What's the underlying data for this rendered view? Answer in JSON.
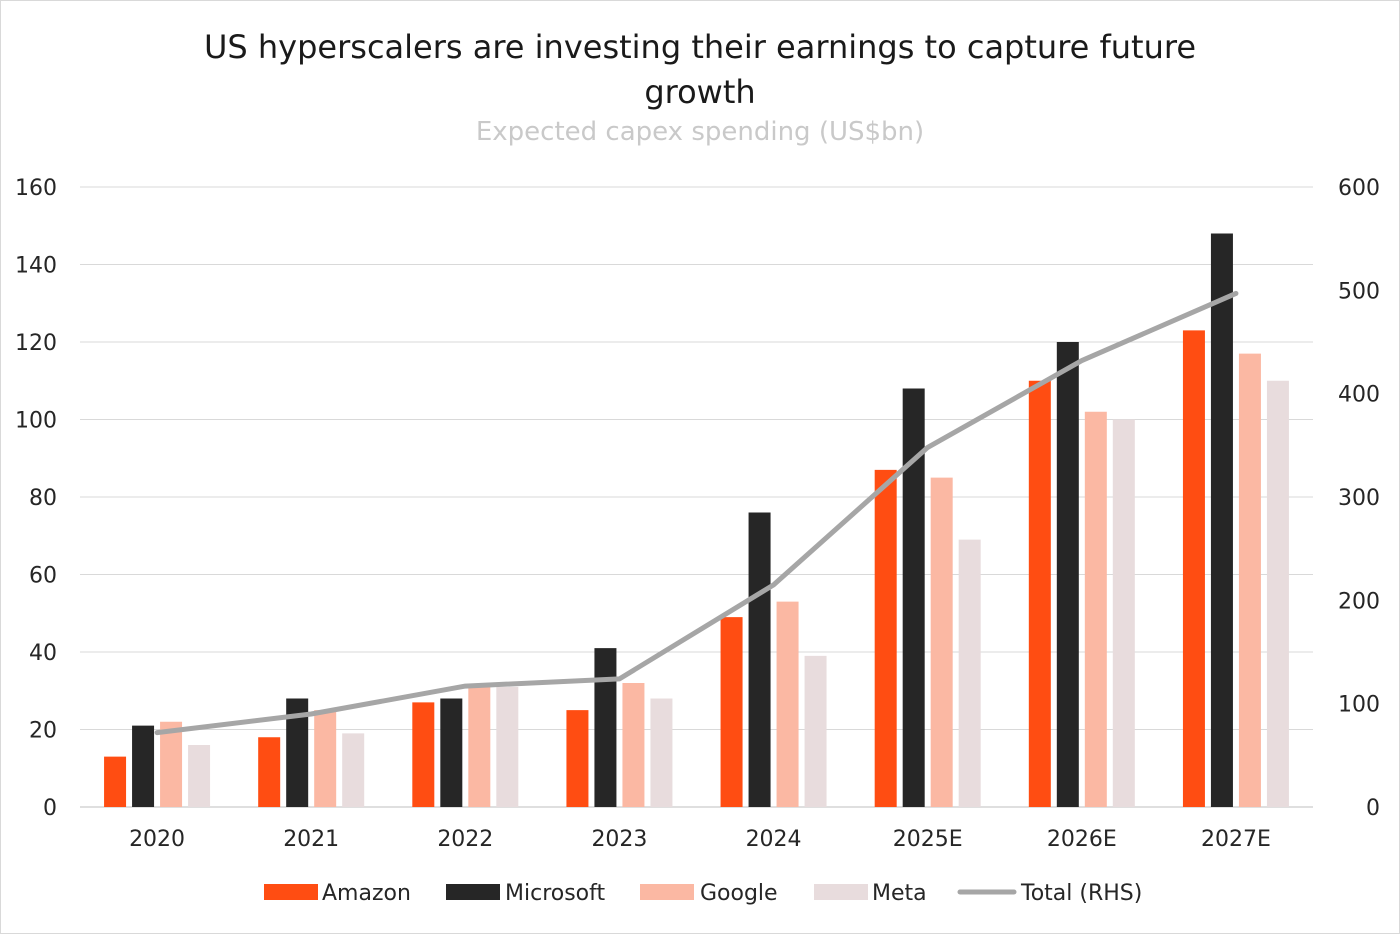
{
  "chart_data": {
    "type": "bar",
    "title": "US hyperscalers are investing their earnings to capture future growth",
    "title_lines": [
      "US hyperscalers are investing their earnings to capture future",
      "growth"
    ],
    "subtitle": "Expected capex spending (US$bn)",
    "categories": [
      "2020",
      "2021",
      "2022",
      "2023",
      "2024",
      "2025E",
      "2026E",
      "2027E"
    ],
    "series": [
      {
        "name": "Amazon",
        "type": "bar",
        "axis": "left",
        "color": "#ff4d12",
        "values": [
          13,
          18,
          27,
          25,
          49,
          87,
          110,
          123
        ]
      },
      {
        "name": "Microsoft",
        "type": "bar",
        "axis": "left",
        "color": "#262626",
        "values": [
          21,
          28,
          28,
          41,
          76,
          108,
          120,
          148
        ]
      },
      {
        "name": "Google",
        "type": "bar",
        "axis": "left",
        "color": "#fbb8a3",
        "values": [
          22,
          25,
          31,
          32,
          53,
          85,
          102,
          117
        ]
      },
      {
        "name": "Meta",
        "type": "bar",
        "axis": "left",
        "color": "#e8dcdd",
        "values": [
          16,
          19,
          31,
          28,
          39,
          69,
          100,
          110
        ]
      },
      {
        "name": "Total (RHS)",
        "type": "line",
        "axis": "right",
        "color": "#a6a6a6",
        "values": [
          72,
          90,
          117,
          124,
          215,
          348,
          432,
          497
        ]
      }
    ],
    "y_left": {
      "min": 0,
      "max": 160,
      "ticks": [
        "0",
        "20",
        "40",
        "60",
        "80",
        "100",
        "120",
        "140",
        "160"
      ]
    },
    "y_right": {
      "min": 0,
      "max": 600,
      "ticks": [
        "0",
        "100",
        "200",
        "300",
        "400",
        "500",
        "600"
      ]
    },
    "grid": true,
    "legend_position": "bottom"
  }
}
